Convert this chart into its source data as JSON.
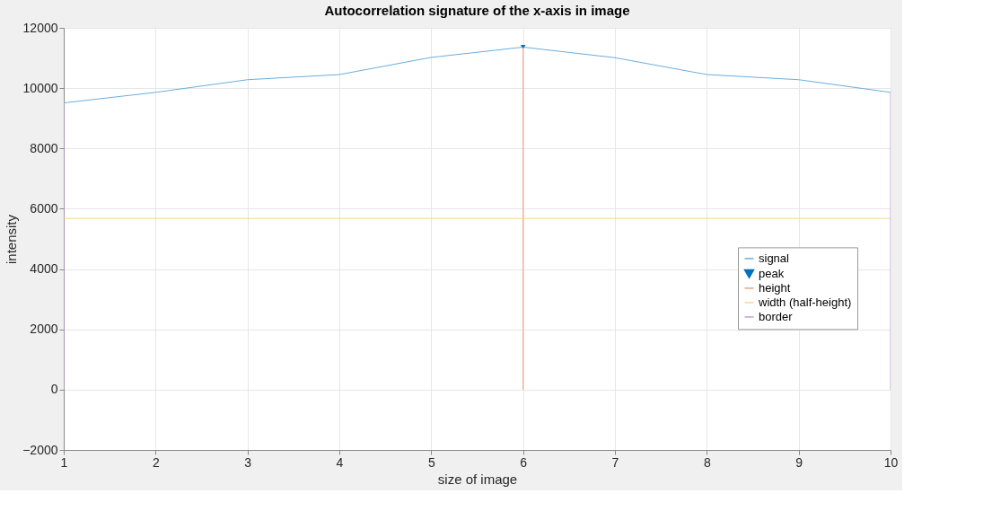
{
  "chart_data": {
    "type": "line",
    "title": "Autocorrelation signature of the x-axis in image",
    "xlabel": "size of image",
    "ylabel": "intensity",
    "xlim": [
      1,
      10
    ],
    "xticks": [
      1,
      2,
      3,
      4,
      5,
      6,
      7,
      8,
      9,
      10
    ],
    "ylim": [
      -2000,
      12000
    ],
    "yticks": [
      -2000,
      0,
      2000,
      4000,
      6000,
      8000,
      10000,
      12000
    ],
    "grid": true,
    "legend": "right",
    "line_style": "solid",
    "series": [
      {
        "name": "signal",
        "color": "#6aaee0",
        "x": [
          1,
          2,
          3,
          4,
          5,
          6,
          7,
          8,
          9,
          10
        ],
        "values": [
          9510,
          9860,
          10280,
          10450,
          11020,
          11360,
          11010,
          10450,
          10280,
          9860
        ]
      },
      {
        "name": "peak",
        "type": "scatter",
        "marker": "triangle",
        "color": "#0072bd",
        "x": [
          6
        ],
        "values": [
          11360
        ]
      },
      {
        "name": "height",
        "color": "#f0a080",
        "x": [
          6,
          6
        ],
        "values": [
          0,
          11360
        ]
      },
      {
        "name": "width (half-height)",
        "color": "#f5d890",
        "x": [
          1,
          10
        ],
        "values": [
          5680,
          5680
        ]
      },
      {
        "name": "border",
        "color": "#c0a0d0",
        "x": [
          1,
          1,
          null,
          10,
          10
        ],
        "values": [
          0,
          9510,
          null,
          0,
          9860
        ]
      }
    ]
  }
}
